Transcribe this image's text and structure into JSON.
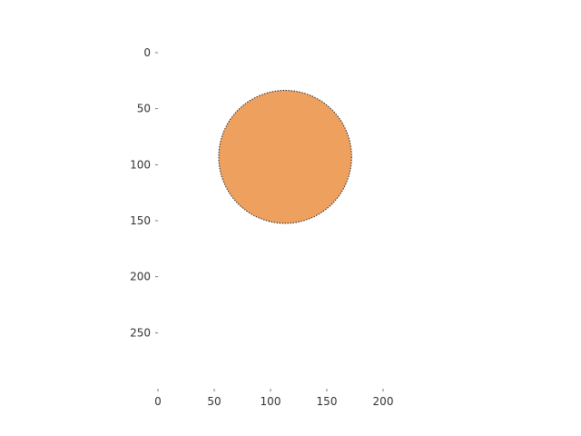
{
  "chart_data": {
    "type": "image",
    "title": "",
    "xlabel": "",
    "ylabel": "",
    "xlim": [
      0,
      250
    ],
    "ylim": [
      300,
      0
    ],
    "y_inverted": true,
    "grid": false,
    "xticks": [
      0,
      50,
      100,
      150,
      200
    ],
    "xtick_labels": [
      "0",
      "50",
      "100",
      "150",
      "200"
    ],
    "yticks": [
      0,
      50,
      100,
      150,
      200,
      250
    ],
    "ytick_labels": [
      "0",
      "50",
      "100",
      "150",
      "200",
      "250"
    ],
    "shapes": [
      {
        "kind": "circle",
        "center": [
          113,
          93
        ],
        "radius": 59,
        "fill": "#EEA05F",
        "edge": "#222222"
      }
    ],
    "background": "#FFFFFF"
  }
}
